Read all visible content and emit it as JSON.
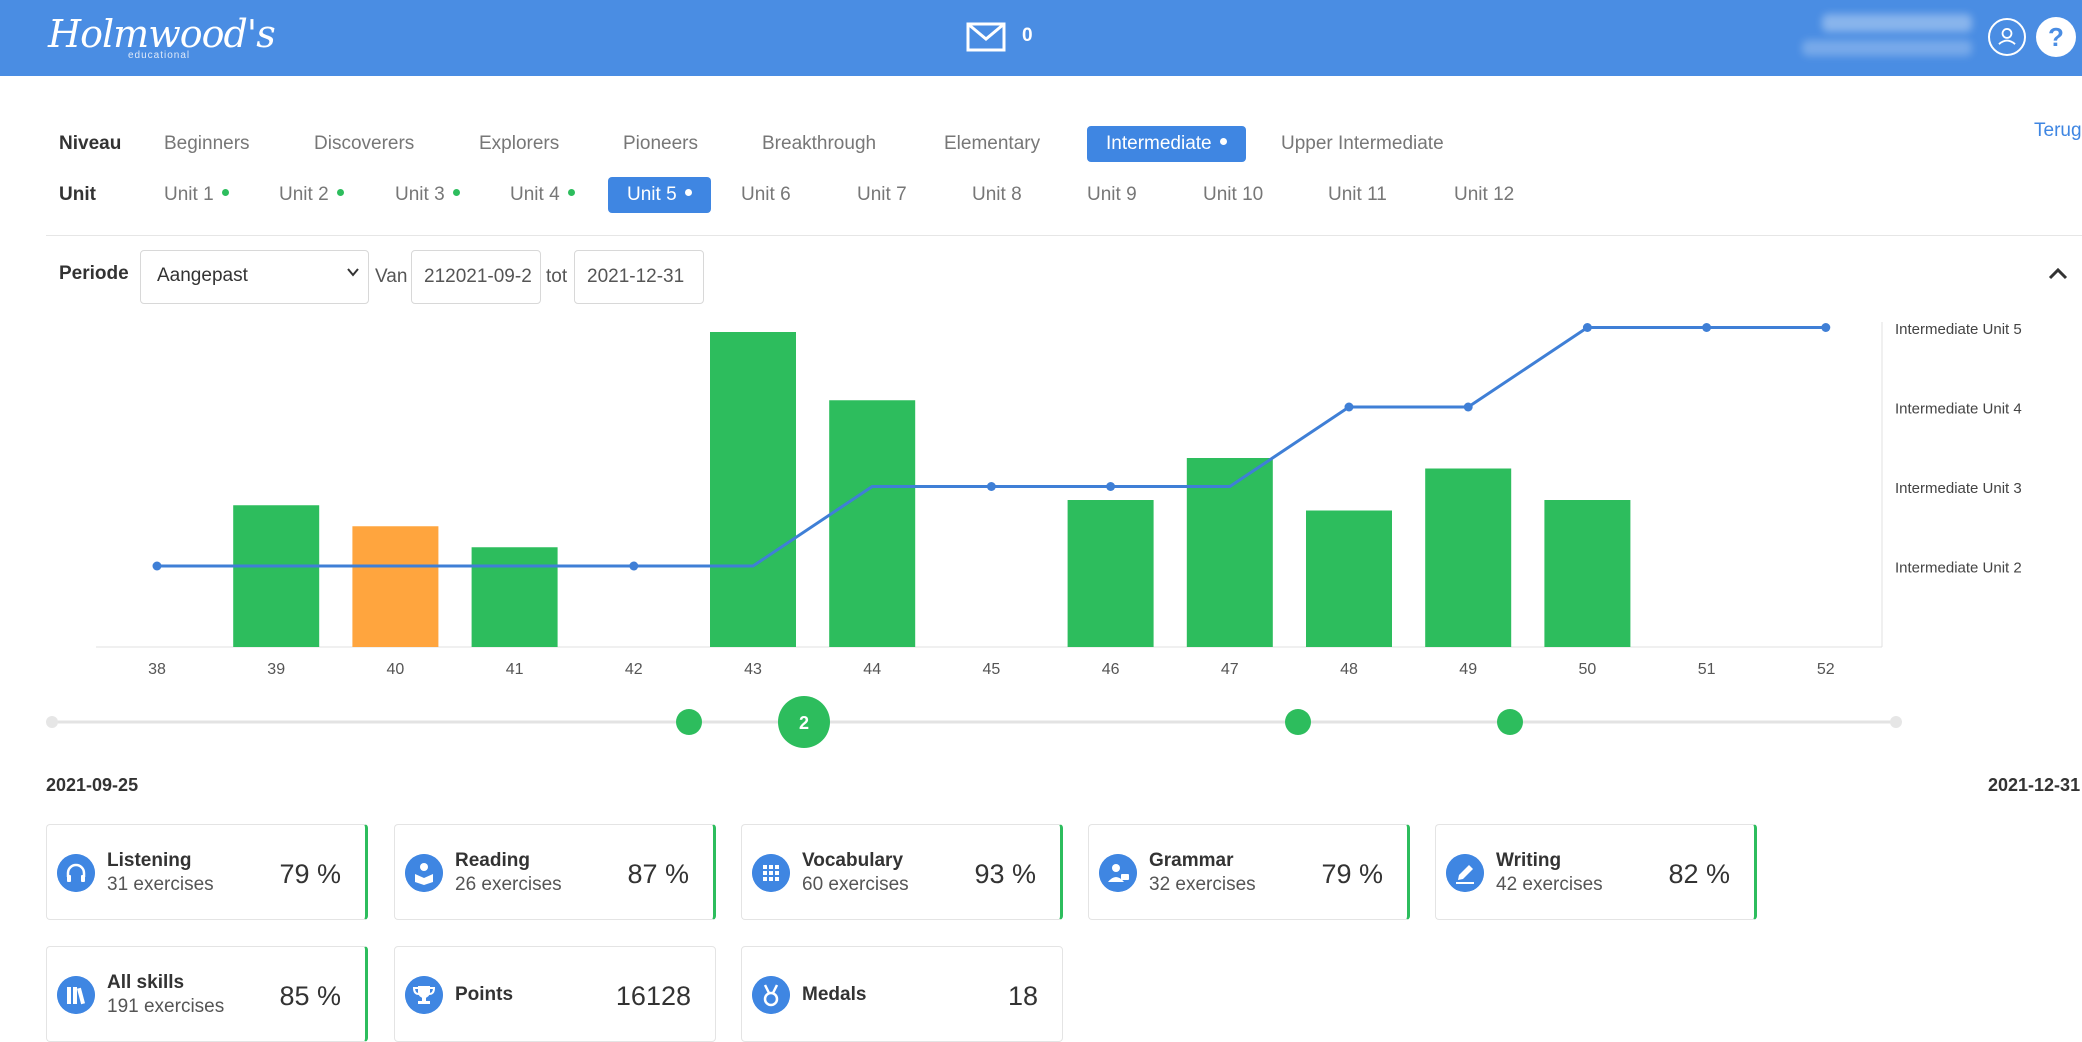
{
  "header": {
    "logo": "Holmwood's",
    "logo_sub": "educational",
    "mail_count": "0",
    "help": "?"
  },
  "niveau": {
    "label": "Niveau",
    "items": [
      "Beginners",
      "Discoverers",
      "Explorers",
      "Pioneers",
      "Breakthrough",
      "Elementary",
      "Intermediate",
      "Upper Intermediate"
    ],
    "active": "Intermediate"
  },
  "unit": {
    "label": "Unit",
    "items": [
      "Unit 1",
      "Unit 2",
      "Unit 3",
      "Unit 4",
      "Unit 5",
      "Unit 6",
      "Unit 7",
      "Unit 8",
      "Unit 9",
      "Unit 10",
      "Unit 11",
      "Unit 12"
    ],
    "active": "Unit 5"
  },
  "back_link": "Terug",
  "period": {
    "label": "Periode",
    "select_value": "Aangepast",
    "from_label": "Van",
    "from_value": "212021-09-2",
    "to_label": "tot",
    "to_value": "2021-12-31"
  },
  "chart_data": {
    "type": "bar",
    "categories": [
      "38",
      "39",
      "40",
      "41",
      "42",
      "43",
      "44",
      "45",
      "46",
      "47",
      "48",
      "49",
      "50",
      "51",
      "52"
    ],
    "bars": [
      null,
      27,
      23,
      19,
      null,
      60,
      47,
      null,
      28,
      36,
      26,
      34,
      28,
      null,
      null
    ],
    "bar_colors": [
      "",
      "#2dbd5d",
      "#ffa53e",
      "#2dbd5d",
      "",
      "#2dbd5d",
      "#2dbd5d",
      "",
      "#2dbd5d",
      "#2dbd5d",
      "#2dbd5d",
      "#2dbd5d",
      "#2dbd5d",
      "",
      ""
    ],
    "line": {
      "name": "unit progress",
      "values": [
        2,
        2,
        2,
        2,
        2,
        2,
        3,
        3,
        3,
        3,
        4,
        4,
        5,
        5,
        5
      ]
    },
    "right_axis_labels": [
      "Intermediate Unit 5",
      "Intermediate Unit 4",
      "Intermediate Unit 3",
      "Intermediate Unit 2"
    ],
    "line_color": "#3f7fd6"
  },
  "timeline": {
    "start": "2021-09-25",
    "end": "2021-12-31",
    "cluster_label": "2"
  },
  "cards": [
    {
      "title": "Listening",
      "sub": "31 exercises",
      "value": "79 %",
      "icon": "headphones-icon"
    },
    {
      "title": "Reading",
      "sub": "26 exercises",
      "value": "87 %",
      "icon": "reading-icon"
    },
    {
      "title": "Vocabulary",
      "sub": "60 exercises",
      "value": "93 %",
      "icon": "vocabulary-icon"
    },
    {
      "title": "Grammar",
      "sub": "32 exercises",
      "value": "79 %",
      "icon": "grammar-icon"
    },
    {
      "title": "Writing",
      "sub": "42 exercises",
      "value": "82 %",
      "icon": "pencil-icon"
    },
    {
      "title": "All skills",
      "sub": "191 exercises",
      "value": "85 %",
      "icon": "books-icon"
    },
    {
      "title": "Points",
      "sub": "",
      "value": "16128",
      "icon": "trophy-icon"
    },
    {
      "title": "Medals",
      "sub": "",
      "value": "18",
      "icon": "medal-icon"
    }
  ],
  "colors": {
    "primary": "#3f86e2",
    "green": "#2dbd5d",
    "orange": "#ffa53e"
  }
}
